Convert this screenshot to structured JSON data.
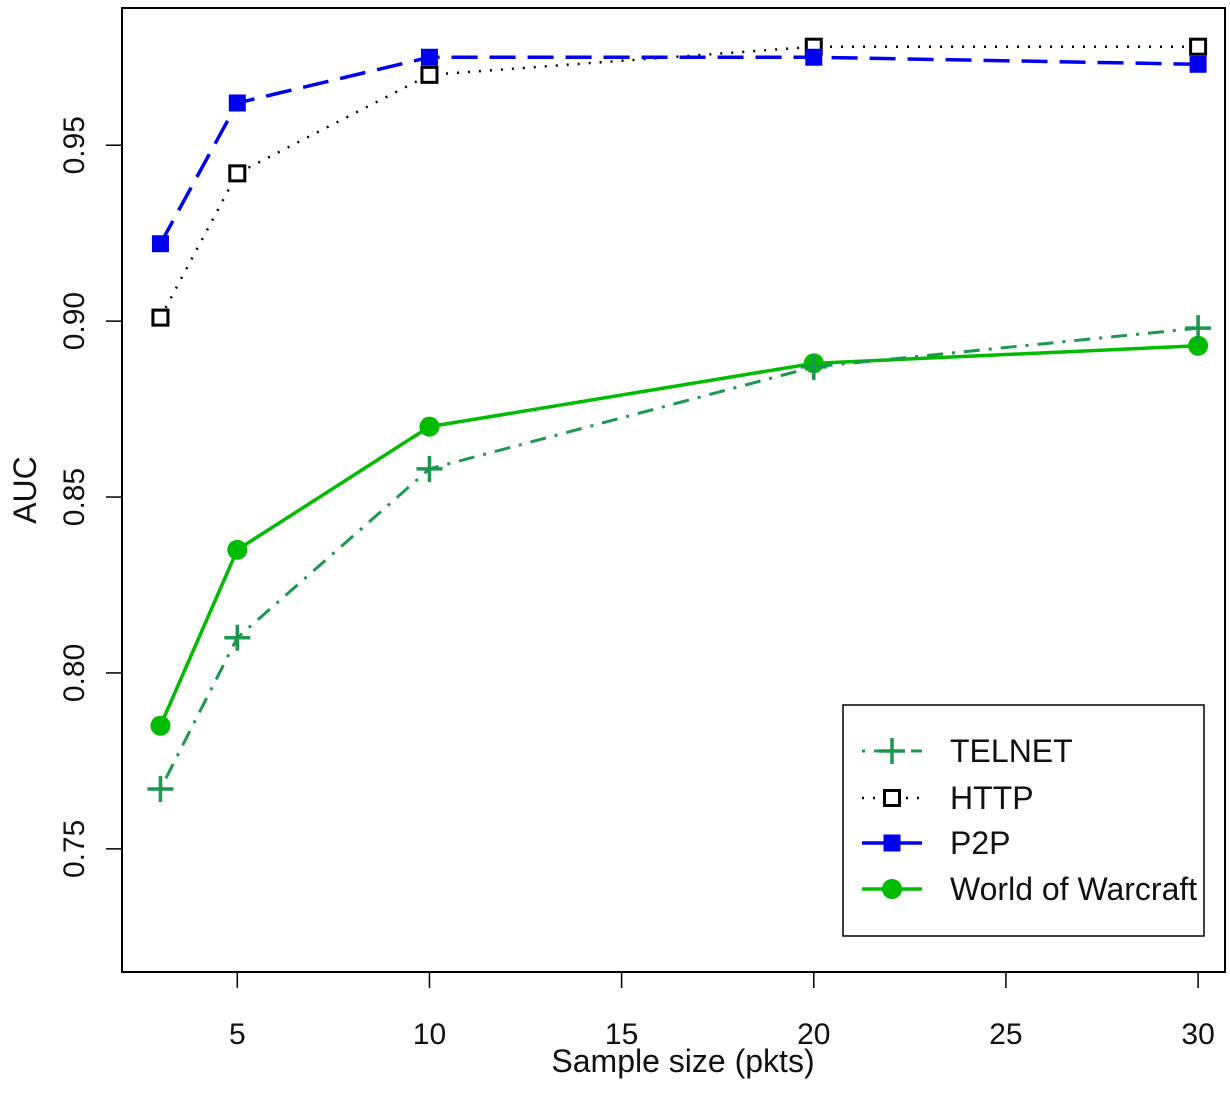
{
  "chart_data": {
    "type": "line",
    "title": "",
    "xlabel": "Sample size (pkts)",
    "ylabel": "AUC",
    "x": [
      3,
      5,
      10,
      20,
      30
    ],
    "xlim": [
      2.0,
      30.7
    ],
    "ylim": [
      0.715,
      0.989
    ],
    "xticks": [
      5,
      10,
      15,
      20,
      25,
      30
    ],
    "xtick_labels": [
      "5",
      "10",
      "15",
      "20",
      "25",
      "30"
    ],
    "yticks": [
      0.75,
      0.8,
      0.85,
      0.9,
      0.95
    ],
    "ytick_labels": [
      "0.75",
      "0.80",
      "0.85",
      "0.90",
      "0.95"
    ],
    "grid": false,
    "legend_position": "bottom-right",
    "series": [
      {
        "name": "TELNET",
        "values": [
          0.767,
          0.81,
          0.858,
          0.887,
          0.898
        ],
        "color": "#1a9850",
        "line": "dotdash",
        "marker": "plus"
      },
      {
        "name": "HTTP",
        "values": [
          0.901,
          0.942,
          0.97,
          0.978,
          0.978
        ],
        "color": "#000000",
        "line": "dotted",
        "marker": "open-square"
      },
      {
        "name": "P2P",
        "values": [
          0.922,
          0.962,
          0.975,
          0.975,
          0.973
        ],
        "color": "#0000ee",
        "line": "dashed",
        "marker": "filled-square"
      },
      {
        "name": "World of Warcraft",
        "values": [
          0.785,
          0.835,
          0.87,
          0.888,
          0.893
        ],
        "color": "#00bb00",
        "line": "solid",
        "marker": "filled-circle"
      }
    ]
  }
}
